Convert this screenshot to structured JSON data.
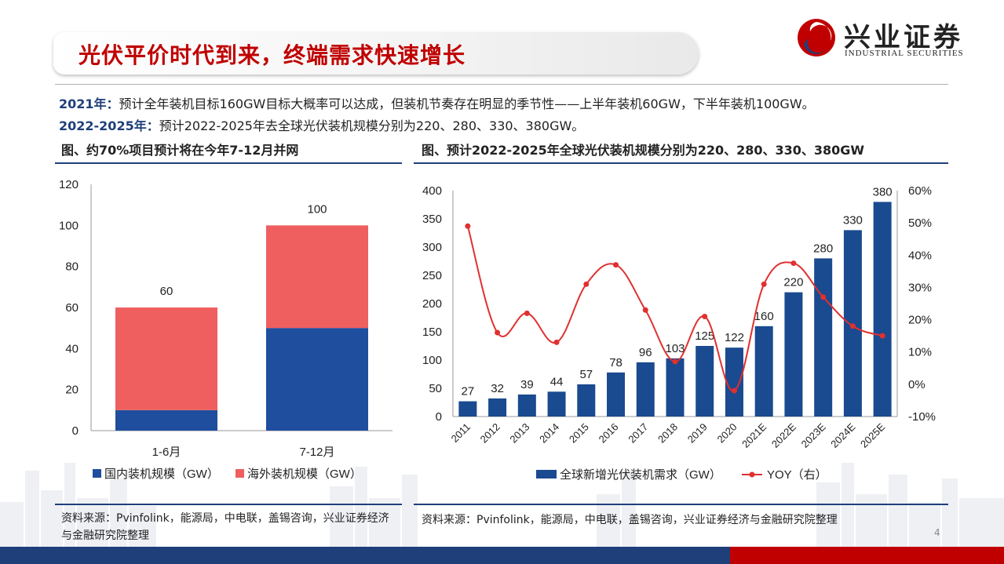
{
  "header": {
    "title": "光伏平价时代到来，终端需求快速增长",
    "logo_text": "兴业证券",
    "logo_sub": "INDUSTRIAL SECURITIES",
    "page_number": "4"
  },
  "summary": {
    "line1_label": "2021年：",
    "line1_text": "预计全年装机目标160GW目标大概率可以达成，但装机节奏存在明显的季节性——上半年装机60GW，下半年装机100GW。",
    "line2_label": "2022-2025年：",
    "line2_text": "预计2022-2025年去全球光伏装机规模分别为220、280、330、380GW。"
  },
  "figures": {
    "left_title": "图、约70%项目预计将在今年7-12月并网",
    "right_title": "图、预计2022-2025年全球光伏装机规模分别为220、280、330、380GW",
    "left_source": "资料来源：Pvinfolink，能源局，中电联，盖锡咨询，兴业证券经济与金融研究院整理",
    "right_source": "资料来源：Pvinfolink，能源局，中电联，盖锡咨询，兴业证券经济与金融研究院整理"
  },
  "colors": {
    "navy": "#1f3f7a",
    "red": "#c00000",
    "domestic": "#1f4e9e",
    "overseas": "#ef5f5f",
    "global_bar": "#1a4a8f",
    "yoy_line": "#e03030"
  },
  "chart_data": [
    {
      "type": "bar",
      "stacked": true,
      "categories": [
        "1-6月",
        "7-12月"
      ],
      "series": [
        {
          "name": "国内装机规模（GW）",
          "values": [
            10,
            50
          ]
        },
        {
          "name": "海外装机规模（GW）",
          "values": [
            50,
            50
          ]
        }
      ],
      "totals": [
        60,
        100
      ],
      "ylim": [
        0,
        120
      ],
      "yticks": [
        0,
        20,
        40,
        60,
        80,
        100,
        120
      ],
      "grid": false,
      "legend": "bottom"
    },
    {
      "type": "bar",
      "categories": [
        "2011",
        "2012",
        "2013",
        "2014",
        "2015",
        "2016",
        "2017",
        "2018",
        "2019",
        "2020",
        "2021E",
        "2022E",
        "2023E",
        "2024E",
        "2025E"
      ],
      "series": [
        {
          "name": "全球新增光伏装机需求（GW）",
          "type": "bar",
          "axis": "left",
          "values": [
            27,
            32,
            39,
            44,
            57,
            78,
            96,
            103,
            125,
            122,
            160,
            220,
            280,
            330,
            380
          ]
        },
        {
          "name": "YOY（右）",
          "type": "line",
          "axis": "right",
          "values": [
            0.49,
            0.16,
            0.22,
            0.13,
            0.31,
            0.37,
            0.23,
            0.07,
            0.21,
            -0.02,
            0.31,
            0.375,
            0.27,
            0.18,
            0.15
          ]
        }
      ],
      "ylim": [
        0,
        400
      ],
      "yticks": [
        0,
        50,
        100,
        150,
        200,
        250,
        300,
        350,
        400
      ],
      "y2lim": [
        -0.1,
        0.6
      ],
      "y2ticks": [
        "-10%",
        "0%",
        "10%",
        "20%",
        "30%",
        "40%",
        "50%",
        "60%"
      ],
      "grid": false,
      "legend": "bottom"
    }
  ]
}
